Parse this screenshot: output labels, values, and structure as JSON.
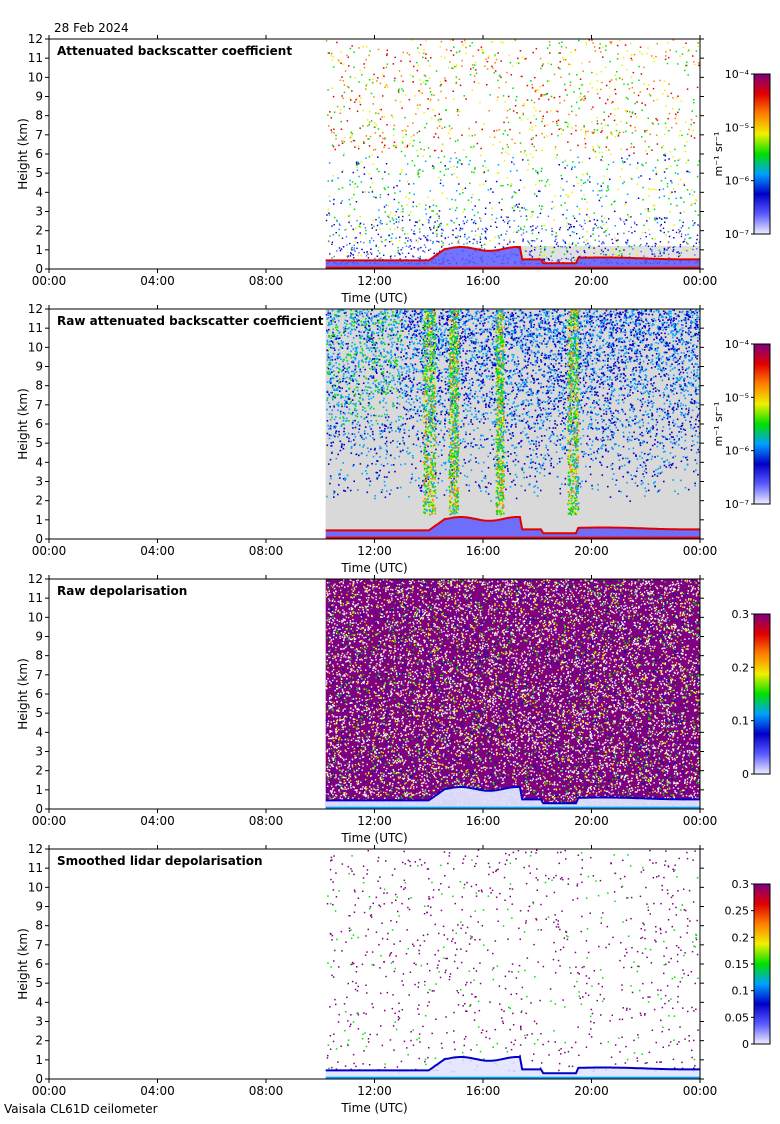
{
  "header": {
    "date": "28 Feb 2024"
  },
  "footer": {
    "instrument": "Vaisala CL61D ceilometer"
  },
  "colors": {
    "invalid_grey": "#d9d9d9",
    "panel_border": "#000000",
    "colormap": [
      "#efefff",
      "#5a5aff",
      "#0000c8",
      "#00a0ff",
      "#00e000",
      "#f0f000",
      "#ff8000",
      "#e00000",
      "#800080"
    ]
  },
  "chart_data": [
    {
      "type": "heatmap",
      "title": "Attenuated backscatter coefficient",
      "xlabel": "Time (UTC)",
      "ylabel": "Height (km)",
      "x_ticks": [
        "00:00",
        "04:00",
        "08:00",
        "12:00",
        "16:00",
        "20:00",
        "00:00"
      ],
      "y_ticks": [
        "0",
        "1",
        "2",
        "3",
        "4",
        "5",
        "6",
        "7",
        "8",
        "9",
        "10",
        "11",
        "12"
      ],
      "ylim": [
        0,
        12
      ],
      "x_range_hours": [
        0,
        24
      ],
      "data_start_hour": 10.2,
      "colorbar": {
        "scale": "log",
        "units": "m⁻¹ sr⁻¹",
        "ticks": [
          "10⁻⁴",
          "10⁻⁵",
          "10⁻⁶",
          "10⁻⁷"
        ],
        "range": [
          1e-07,
          0.0001
        ]
      },
      "style": "sparse"
    },
    {
      "type": "heatmap",
      "title": "Raw attenuated backscatter coefficient",
      "xlabel": "Time (UTC)",
      "ylabel": "Height (km)",
      "x_ticks": [
        "00:00",
        "04:00",
        "08:00",
        "12:00",
        "16:00",
        "20:00",
        "00:00"
      ],
      "y_ticks": [
        "0",
        "1",
        "2",
        "3",
        "4",
        "5",
        "6",
        "7",
        "8",
        "9",
        "10",
        "11",
        "12"
      ],
      "ylim": [
        0,
        12
      ],
      "x_range_hours": [
        0,
        24
      ],
      "data_start_hour": 10.2,
      "colorbar": {
        "scale": "log",
        "units": "m⁻¹ sr⁻¹",
        "ticks": [
          "10⁻⁴",
          "10⁻⁵",
          "10⁻⁶",
          "10⁻⁷"
        ],
        "range": [
          1e-07,
          0.0001
        ]
      },
      "style": "raw"
    },
    {
      "type": "heatmap",
      "title": "Raw depolarisation",
      "xlabel": "Time (UTC)",
      "ylabel": "Height (km)",
      "x_ticks": [
        "00:00",
        "04:00",
        "08:00",
        "12:00",
        "16:00",
        "20:00",
        "00:00"
      ],
      "y_ticks": [
        "0",
        "1",
        "2",
        "3",
        "4",
        "5",
        "6",
        "7",
        "8",
        "9",
        "10",
        "11",
        "12"
      ],
      "ylim": [
        0,
        12
      ],
      "x_range_hours": [
        0,
        24
      ],
      "data_start_hour": 10.2,
      "colorbar": {
        "scale": "linear",
        "units": "",
        "ticks": [
          "0.3",
          "0.2",
          "0.1",
          "0"
        ],
        "range": [
          0,
          0.3
        ]
      },
      "style": "depol_raw"
    },
    {
      "type": "heatmap",
      "title": "Smoothed lidar depolarisation",
      "xlabel": "Time (UTC)",
      "ylabel": "Height (km)",
      "x_ticks": [
        "00:00",
        "04:00",
        "08:00",
        "12:00",
        "16:00",
        "20:00",
        "00:00"
      ],
      "y_ticks": [
        "0",
        "1",
        "2",
        "3",
        "4",
        "5",
        "6",
        "7",
        "8",
        "9",
        "10",
        "11",
        "12"
      ],
      "ylim": [
        0,
        12
      ],
      "x_range_hours": [
        0,
        24
      ],
      "data_start_hour": 10.2,
      "colorbar": {
        "scale": "linear",
        "units": "",
        "ticks": [
          "0.3",
          "0.25",
          "0.2",
          "0.15",
          "0.1",
          "0.05",
          "0"
        ],
        "range": [
          0,
          0.3
        ]
      },
      "style": "depol_smooth"
    }
  ]
}
